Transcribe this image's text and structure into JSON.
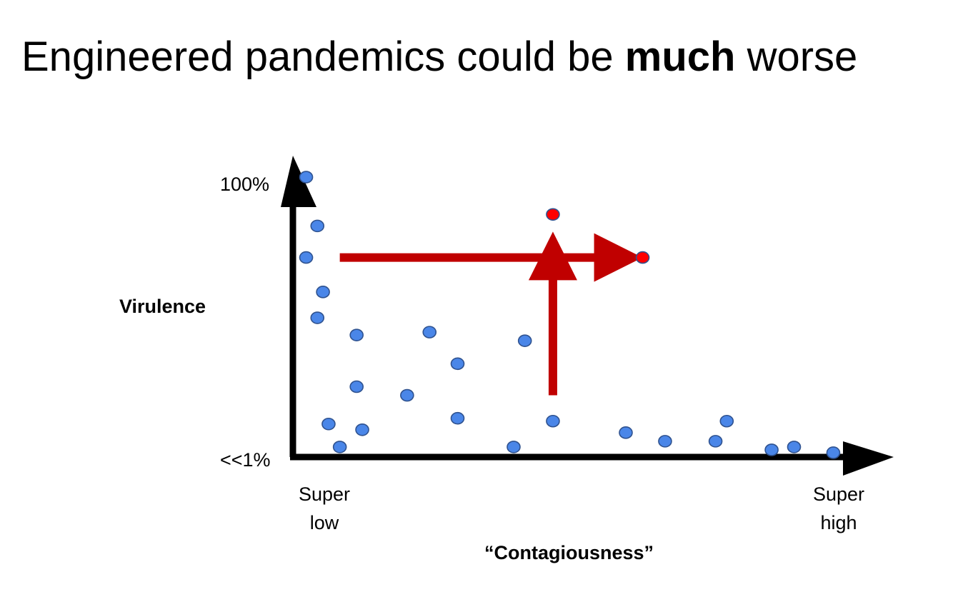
{
  "title": {
    "prefix": "Engineered pandemics could be ",
    "emphasis": "much",
    "suffix": " worse"
  },
  "axes": {
    "y_label": "Virulence",
    "y_top": "100%",
    "y_bottom": "<<1%",
    "x_label": "“Contagiousness”",
    "x_left_line1": "Super",
    "x_left_line2": "low",
    "x_right_line1": "Super",
    "x_right_line2": "high"
  },
  "colors": {
    "axis": "#000000",
    "point_fill": "#4a86e8",
    "point_stroke": "#2f528f",
    "engineered_fill": "#ff0000",
    "arrow": "#c00000"
  },
  "chart_data": {
    "type": "scatter",
    "x_scale": "qualitative (Super low → Super high)",
    "y_scale": "qualitative (<<1% → 100%)",
    "xlim": [
      0,
      1
    ],
    "ylim": [
      0,
      1
    ],
    "natural_points": [
      [
        0.03,
        0.98
      ],
      [
        0.05,
        0.81
      ],
      [
        0.03,
        0.7
      ],
      [
        0.06,
        0.58
      ],
      [
        0.05,
        0.49
      ],
      [
        0.12,
        0.43
      ],
      [
        0.25,
        0.44
      ],
      [
        0.3,
        0.33
      ],
      [
        0.42,
        0.41
      ],
      [
        0.12,
        0.25
      ],
      [
        0.21,
        0.22
      ],
      [
        0.07,
        0.12
      ],
      [
        0.09,
        0.04
      ],
      [
        0.13,
        0.1
      ],
      [
        0.3,
        0.14
      ],
      [
        0.4,
        0.04
      ],
      [
        0.47,
        0.13
      ],
      [
        0.6,
        0.09
      ],
      [
        0.67,
        0.06
      ],
      [
        0.76,
        0.06
      ],
      [
        0.78,
        0.13
      ],
      [
        0.86,
        0.03
      ],
      [
        0.9,
        0.04
      ],
      [
        0.97,
        0.02
      ]
    ],
    "engineered_points": [
      [
        0.47,
        0.85
      ],
      [
        0.63,
        0.7
      ]
    ],
    "arrows": [
      {
        "from": [
          0.09,
          0.7
        ],
        "to": [
          0.63,
          0.7
        ]
      },
      {
        "from": [
          0.47,
          0.22
        ],
        "to": [
          0.47,
          0.79
        ]
      }
    ]
  }
}
